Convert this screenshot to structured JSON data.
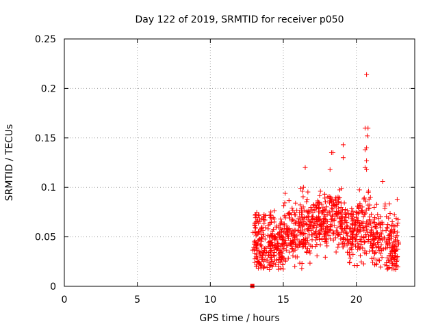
{
  "chart_data": {
    "type": "scatter",
    "title": "Day 122 of 2019, SRMTID for receiver p050",
    "xlabel": "GPS time / hours",
    "ylabel": "SRMTID / TECUs",
    "xlim": [
      0,
      24
    ],
    "ylim": [
      0,
      0.25
    ],
    "x_ticks": [
      0,
      5,
      10,
      15,
      20
    ],
    "x_tick_labels": [
      "0",
      "5",
      "10",
      "15",
      "20"
    ],
    "y_ticks": [
      0,
      0.05,
      0.1,
      0.15,
      0.2,
      0.25
    ],
    "y_tick_labels": [
      "0",
      "0.05",
      "0.1",
      "0.15",
      "0.2",
      "0.25"
    ],
    "grid": true,
    "marker": "plus",
    "series_color": "#ff0000",
    "series": [
      {
        "name": "SRMTID",
        "x_range": [
          12.9,
          22.9
        ],
        "sample_count": 1100,
        "seed": 122,
        "highlighted_points": [
          {
            "x": 20.7,
            "y": 0.214
          },
          {
            "x": 20.6,
            "y": 0.16
          },
          {
            "x": 20.8,
            "y": 0.16
          },
          {
            "x": 20.75,
            "y": 0.152
          },
          {
            "x": 19.1,
            "y": 0.143
          },
          {
            "x": 20.7,
            "y": 0.14
          },
          {
            "x": 20.6,
            "y": 0.138
          },
          {
            "x": 18.3,
            "y": 0.135
          },
          {
            "x": 18.4,
            "y": 0.135
          },
          {
            "x": 19.1,
            "y": 0.13
          },
          {
            "x": 20.7,
            "y": 0.127
          },
          {
            "x": 16.5,
            "y": 0.12
          },
          {
            "x": 20.6,
            "y": 0.12
          },
          {
            "x": 20.7,
            "y": 0.118
          },
          {
            "x": 18.2,
            "y": 0.118
          },
          {
            "x": 21.8,
            "y": 0.106
          },
          {
            "x": 22.8,
            "y": 0.088
          },
          {
            "x": 14.05,
            "y": 0.017
          },
          {
            "x": 22.7,
            "y": 0.017
          }
        ],
        "low_marker": {
          "x": 12.9,
          "y": 0.0
        }
      }
    ]
  }
}
